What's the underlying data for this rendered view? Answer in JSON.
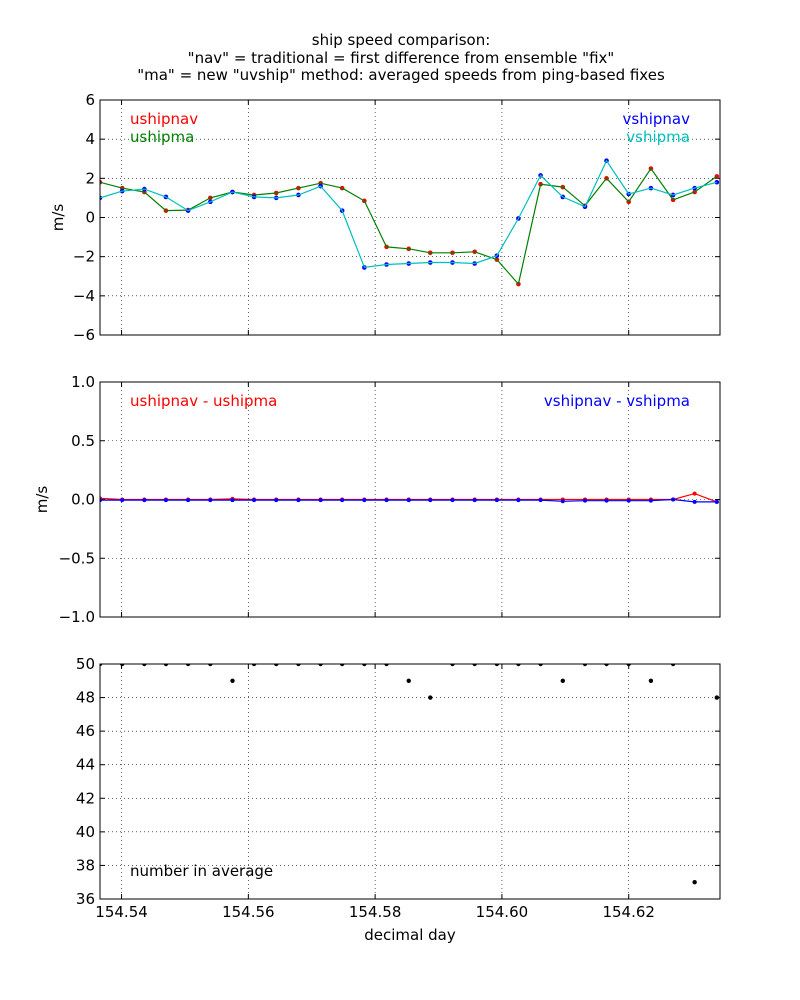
{
  "title": {
    "line1": "ship speed comparison:",
    "line2": "\"nav\" = traditional = first difference from ensemble \"fix\"",
    "line3": "\"ma\" = new \"uvship\" method: averaged speeds from ping-based fixes"
  },
  "chart_data": [
    {
      "type": "line",
      "panel": "speeds",
      "ylabel": "m/s",
      "ylim": [
        -6,
        6
      ],
      "yticks": [
        6,
        4,
        2,
        0,
        -2,
        -4,
        -6
      ],
      "ytick_labels": [
        "6",
        "4",
        "2",
        "0",
        "−2",
        "−4",
        "−6"
      ],
      "xlim": [
        154.5366,
        154.6344
      ],
      "xticks": [
        154.54,
        154.56,
        154.58,
        154.6,
        154.62
      ],
      "grid": true,
      "annotations": [
        {
          "text": "ushipnav",
          "color": "#ff0000",
          "position": "top-left-1"
        },
        {
          "text": "ushipma",
          "color": "#008000",
          "position": "top-left-2"
        },
        {
          "text": "vshipnav",
          "color": "#0000ff",
          "position": "top-right-1"
        },
        {
          "text": "vshipma",
          "color": "#00bfbf",
          "position": "top-right-2"
        }
      ],
      "x": [
        154.5366,
        154.5401,
        154.5436,
        154.547,
        154.5505,
        154.554,
        154.5575,
        154.5609,
        154.5644,
        154.5679,
        154.5714,
        154.5748,
        154.5783,
        154.5818,
        154.5853,
        154.5887,
        154.5922,
        154.5957,
        154.5992,
        154.6026,
        154.6061,
        154.6096,
        154.6131,
        154.6165,
        154.62,
        154.6235,
        154.627,
        154.6304,
        154.6339
      ],
      "series": [
        {
          "name": "ushipnav",
          "color": "#ff0000",
          "marker_only": true,
          "values": [
            1.8,
            1.5,
            1.3,
            0.35,
            0.38,
            1.0,
            1.3,
            1.15,
            1.25,
            1.5,
            1.75,
            1.5,
            0.85,
            -1.5,
            -1.6,
            -1.8,
            -1.8,
            -1.75,
            -2.15,
            -3.4,
            1.7,
            1.55,
            0.6,
            2.0,
            0.8,
            2.5,
            0.9,
            1.3,
            2.1
          ]
        },
        {
          "name": "ushipma",
          "color": "#008000",
          "values": [
            1.8,
            1.5,
            1.3,
            0.35,
            0.38,
            1.0,
            1.3,
            1.15,
            1.25,
            1.5,
            1.75,
            1.5,
            0.85,
            -1.5,
            -1.6,
            -1.8,
            -1.8,
            -1.75,
            -2.15,
            -3.4,
            1.7,
            1.55,
            0.6,
            2.0,
            0.8,
            2.5,
            0.9,
            1.3,
            2.1
          ]
        },
        {
          "name": "vshipnav",
          "color": "#0000ff",
          "marker_only": true,
          "values": [
            1.0,
            1.35,
            1.45,
            1.05,
            0.35,
            0.8,
            1.3,
            1.05,
            1.0,
            1.15,
            1.6,
            0.35,
            -2.55,
            -2.4,
            -2.35,
            -2.3,
            -2.3,
            -2.35,
            -1.95,
            -0.05,
            2.15,
            1.05,
            0.55,
            2.9,
            1.2,
            1.5,
            1.15,
            1.5,
            1.8
          ]
        },
        {
          "name": "vshipma",
          "color": "#00bfbf",
          "values": [
            1.0,
            1.35,
            1.45,
            1.05,
            0.35,
            0.8,
            1.3,
            1.05,
            1.0,
            1.15,
            1.6,
            0.35,
            -2.55,
            -2.4,
            -2.35,
            -2.3,
            -2.3,
            -2.35,
            -1.95,
            -0.05,
            2.15,
            1.05,
            0.55,
            2.9,
            1.2,
            1.5,
            1.15,
            1.5,
            1.8
          ]
        }
      ]
    },
    {
      "type": "line",
      "panel": "differences",
      "ylabel": "m/s",
      "ylim": [
        -1.0,
        1.0
      ],
      "yticks": [
        1.0,
        0.5,
        0.0,
        -0.5,
        -1.0
      ],
      "ytick_labels": [
        "1.0",
        "0.5",
        "0.0",
        "−0.5",
        "−1.0"
      ],
      "xlim": [
        154.5366,
        154.6344
      ],
      "xticks": [
        154.54,
        154.56,
        154.58,
        154.6,
        154.62
      ],
      "grid": true,
      "annotations": [
        {
          "text": "ushipnav - ushipma",
          "color": "#ff0000",
          "position": "top-left"
        },
        {
          "text": "vshipnav - vshipma",
          "color": "#0000ff",
          "position": "top-right"
        }
      ],
      "x": [
        154.5366,
        154.5401,
        154.5436,
        154.547,
        154.5505,
        154.554,
        154.5575,
        154.5609,
        154.5644,
        154.5679,
        154.5714,
        154.5748,
        154.5783,
        154.5818,
        154.5853,
        154.5887,
        154.5922,
        154.5957,
        154.5992,
        154.6026,
        154.6061,
        154.6096,
        154.6131,
        154.6165,
        154.62,
        154.6235,
        154.627,
        154.6304,
        154.6339
      ],
      "series": [
        {
          "name": "ushipnav - ushipma",
          "color": "#ff0000",
          "values": [
            0.01,
            0.0,
            0.0,
            0.0,
            0.0,
            0.0,
            0.005,
            0.0,
            0.0,
            0.0,
            0.0,
            0.0,
            0.0,
            0.0,
            0.0,
            0.0,
            0.0,
            0.0,
            0.0,
            0.0,
            0.0,
            0.0,
            0.0,
            0.0,
            0.0,
            0.0,
            0.0,
            0.05,
            -0.02
          ]
        },
        {
          "name": "vshipnav - vshipma",
          "color": "#0000ff",
          "values": [
            -0.005,
            -0.005,
            -0.005,
            -0.005,
            -0.005,
            -0.005,
            -0.005,
            -0.005,
            -0.005,
            -0.005,
            -0.005,
            -0.005,
            -0.005,
            -0.005,
            -0.005,
            -0.005,
            -0.005,
            -0.005,
            -0.005,
            -0.005,
            -0.005,
            -0.015,
            -0.01,
            -0.01,
            -0.01,
            -0.01,
            0.0,
            -0.02,
            -0.02
          ]
        }
      ]
    },
    {
      "type": "scatter",
      "panel": "counts",
      "ylabel": "",
      "xlabel": "decimal day",
      "ylim": [
        36,
        50
      ],
      "yticks": [
        50,
        48,
        46,
        44,
        42,
        40,
        38,
        36
      ],
      "ytick_labels": [
        "50",
        "48",
        "46",
        "44",
        "42",
        "40",
        "38",
        "36"
      ],
      "xlim": [
        154.5366,
        154.6344
      ],
      "xticks": [
        154.54,
        154.56,
        154.58,
        154.6,
        154.62
      ],
      "xtick_labels": [
        "154.54",
        "154.56",
        "154.58",
        "154.60",
        "154.62"
      ],
      "grid": true,
      "annotations": [
        {
          "text": "number in average",
          "color": "#000000",
          "position": "bottom-left"
        }
      ],
      "x": [
        154.5366,
        154.5401,
        154.5436,
        154.547,
        154.5505,
        154.554,
        154.5575,
        154.5609,
        154.5644,
        154.5679,
        154.5714,
        154.5748,
        154.5783,
        154.5818,
        154.5853,
        154.5887,
        154.5922,
        154.5957,
        154.5992,
        154.6026,
        154.6061,
        154.6096,
        154.6131,
        154.6165,
        154.62,
        154.6235,
        154.627,
        154.6304,
        154.6339
      ],
      "series": [
        {
          "name": "number in average",
          "color": "#000000",
          "values": [
            50,
            50,
            50,
            50,
            50,
            50,
            49,
            50,
            50,
            50,
            50,
            50,
            50,
            50,
            49,
            48,
            50,
            50,
            50,
            50,
            50,
            49,
            50,
            50,
            50,
            49,
            50,
            37,
            48
          ]
        }
      ]
    }
  ]
}
